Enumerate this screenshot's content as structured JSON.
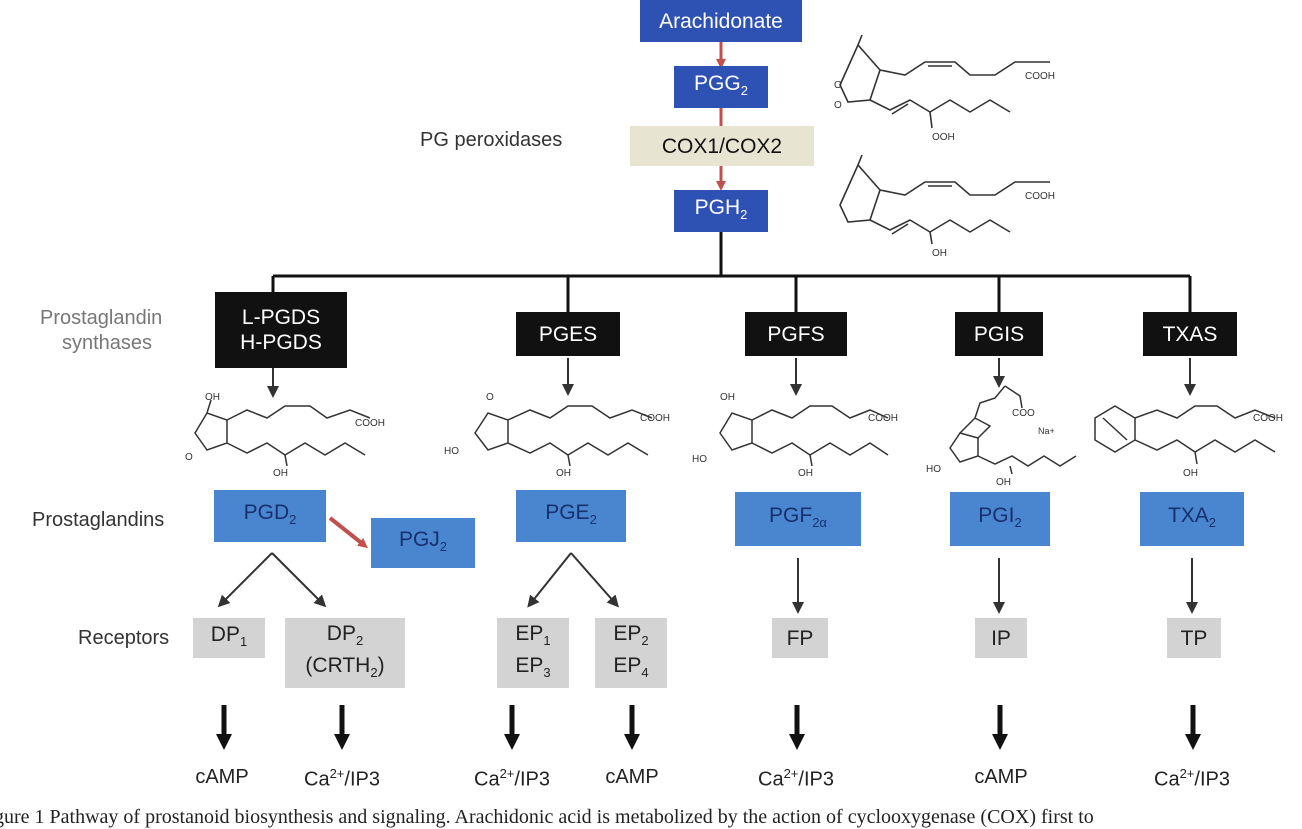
{
  "colors": {
    "enzyme_dark": "#2e52b3",
    "prostaglandin": "#4a86cf",
    "synthase": "#111111",
    "cox": "#e7e4d2",
    "receptor": "#d3d3d3",
    "red_arrow": "#c0504d"
  },
  "top": {
    "arachidonate": "Arachidonate",
    "pgg2": {
      "base": "PGG",
      "sub": "2"
    },
    "cox": "COX1/COX2",
    "pgh2": {
      "base": "PGH",
      "sub": "2"
    },
    "pg_peroxidases": "PG peroxidases"
  },
  "row_labels": {
    "synthases_1": "Prostaglandin",
    "synthases_2": "synthases",
    "prostaglandins": "Prostaglandins",
    "receptors": "Receptors"
  },
  "synthases": {
    "lpgds": "L-PGDS",
    "hpgds": "H-PGDS",
    "pges": "PGES",
    "pgfs": "PGFS",
    "pgis": "PGIS",
    "txas": "TXAS"
  },
  "prostaglandins": {
    "pgd2": {
      "base": "PGD",
      "sub": "2"
    },
    "pgj2": {
      "base": "PGJ",
      "sub": "2"
    },
    "pge2": {
      "base": "PGE",
      "sub": "2"
    },
    "pgf2a": {
      "base": "PGF",
      "sub": "2α"
    },
    "pgi2": {
      "base": "PGI",
      "sub": "2"
    },
    "txa2": {
      "base": "TXA",
      "sub": "2"
    }
  },
  "receptors": {
    "dp1": {
      "base": "DP",
      "sub": "1"
    },
    "dp2": {
      "base": "DP",
      "sub": "2",
      "line2": "(CRTH",
      "line2_sub": "2",
      "line2_end": ")"
    },
    "ep13": {
      "a": "EP",
      "a_sub": "1",
      "b": "EP",
      "b_sub": "3"
    },
    "ep24": {
      "a": "EP",
      "a_sub": "2",
      "b": "EP",
      "b_sub": "4"
    },
    "fp": "FP",
    "ip": "IP",
    "tp": "TP"
  },
  "outputs": {
    "camp": "cAMP",
    "ca": "Ca",
    "ca_sup": "2+",
    "ip3": "/IP3"
  },
  "chem_labels": {
    "cooh": "COOH",
    "ooh": "OOH",
    "oh": "OH",
    "o": "O",
    "ho": "HO",
    "coo": "COO",
    "na": "Na+"
  },
  "caption": "gure 1 Pathway of prostanoid biosynthesis and signaling. Arachidonic acid is metabolized by the action of cyclooxygenase (COX) first to"
}
